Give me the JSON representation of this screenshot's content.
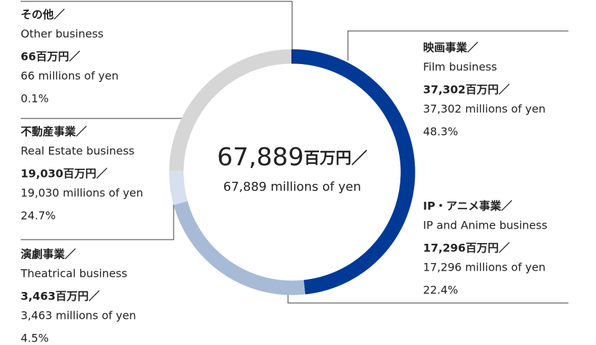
{
  "chart_data": {
    "type": "pie",
    "total": "67,889",
    "total_unit": "百万円／",
    "total_en": "67,889 millions of yen",
    "categories": [
      "映画事業／",
      "IP・アニメ事業／",
      "演劇事業／",
      "不動産事業／",
      "その他／"
    ],
    "categories_en": [
      "Film business",
      "IP and Anime business",
      "Theatrical business",
      "Real Estate business",
      "Other business"
    ],
    "amounts": [
      "37,302百万円／",
      "17,296百万円／",
      "3,463百万円／",
      "19,030百万円／",
      "66百万円／"
    ],
    "amounts_en": [
      "37,302 millions of yen",
      "17,296 millions of yen",
      "3,463 millions of yen",
      "19,030 millions of yen",
      "66 millions of yen"
    ],
    "values": [
      48.3,
      22.4,
      4.5,
      24.7,
      0.1
    ],
    "value_labels": [
      "48.3%",
      "22.4%",
      "4.5%",
      "24.7%",
      "0.1%"
    ],
    "colors": [
      "#003a96",
      "#a7bbd7",
      "#d6e0ef",
      "#d6d6d6",
      "#222222"
    ]
  }
}
